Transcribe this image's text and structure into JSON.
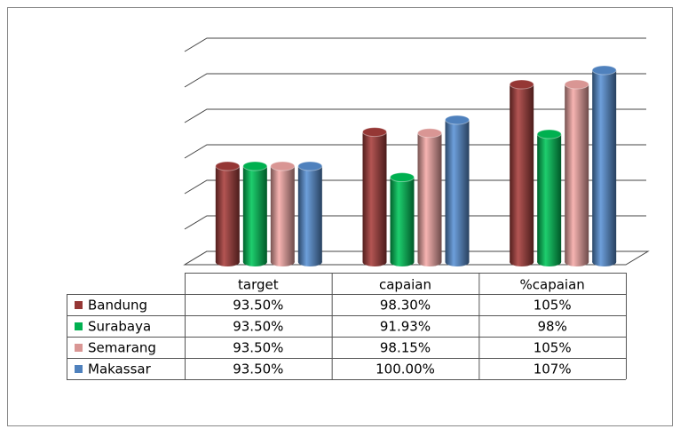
{
  "chart_data": {
    "type": "bar3d",
    "categories": [
      "target",
      "capaian",
      "%capaian"
    ],
    "series": [
      {
        "name": "Bandung",
        "color": "#953735",
        "values": [
          93.5,
          98.3,
          105
        ],
        "value_labels": [
          "93.50%",
          "98.30%",
          "105%"
        ]
      },
      {
        "name": "Surabaya",
        "color": "#00b050",
        "values": [
          93.5,
          91.93,
          98
        ],
        "value_labels": [
          "93.50%",
          "91.93%",
          "98%"
        ]
      },
      {
        "name": "Semarang",
        "color": "#d99694",
        "values": [
          93.5,
          98.15,
          105
        ],
        "value_labels": [
          "93.50%",
          "98.15%",
          "105%"
        ]
      },
      {
        "name": "Makassar",
        "color": "#4f81bd",
        "values": [
          93.5,
          100,
          107
        ],
        "value_labels": [
          "93.50%",
          "100.00%",
          "107%"
        ]
      }
    ],
    "ylim": [
      80,
      110
    ],
    "yticks": [
      80,
      85,
      90,
      95,
      100,
      105,
      110
    ],
    "grid": true
  }
}
